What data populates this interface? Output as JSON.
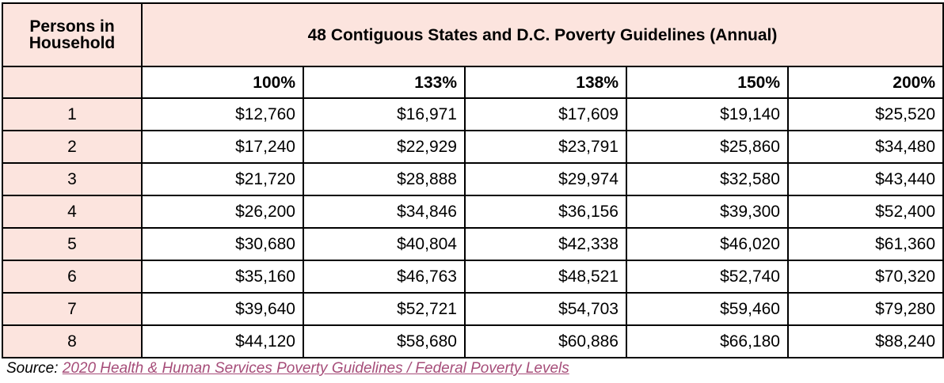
{
  "table": {
    "corner_header": "Persons in Household",
    "title": "48 Contiguous States and D.C. Poverty Guidelines (Annual)",
    "percent_headers": [
      "100%",
      "133%",
      "138%",
      "150%",
      "200%"
    ],
    "rows": [
      {
        "persons": "1",
        "values": [
          "$12,760",
          "$16,971",
          "$17,609",
          "$19,140",
          "$25,520"
        ]
      },
      {
        "persons": "2",
        "values": [
          "$17,240",
          "$22,929",
          "$23,791",
          "$25,860",
          "$34,480"
        ]
      },
      {
        "persons": "3",
        "values": [
          "$21,720",
          "$28,888",
          "$29,974",
          "$32,580",
          "$43,440"
        ]
      },
      {
        "persons": "4",
        "values": [
          "$26,200",
          "$34,846",
          "$36,156",
          "$39,300",
          "$52,400"
        ]
      },
      {
        "persons": "5",
        "values": [
          "$30,680",
          "$40,804",
          "$42,338",
          "$46,020",
          "$61,360"
        ]
      },
      {
        "persons": "6",
        "values": [
          "$35,160",
          "$46,763",
          "$48,521",
          "$52,740",
          "$70,320"
        ]
      },
      {
        "persons": "7",
        "values": [
          "$39,640",
          "$52,721",
          "$54,703",
          "$59,460",
          "$79,280"
        ]
      },
      {
        "persons": "8",
        "values": [
          "$44,120",
          "$58,680",
          "$60,886",
          "$66,180",
          "$88,240"
        ]
      }
    ]
  },
  "source": {
    "label": "Source:",
    "link_text": "2020 Health & Human Services Poverty Guidelines / Federal Poverty Levels"
  },
  "colors": {
    "header_fill": "#fce4de",
    "link": "#a64d79"
  }
}
